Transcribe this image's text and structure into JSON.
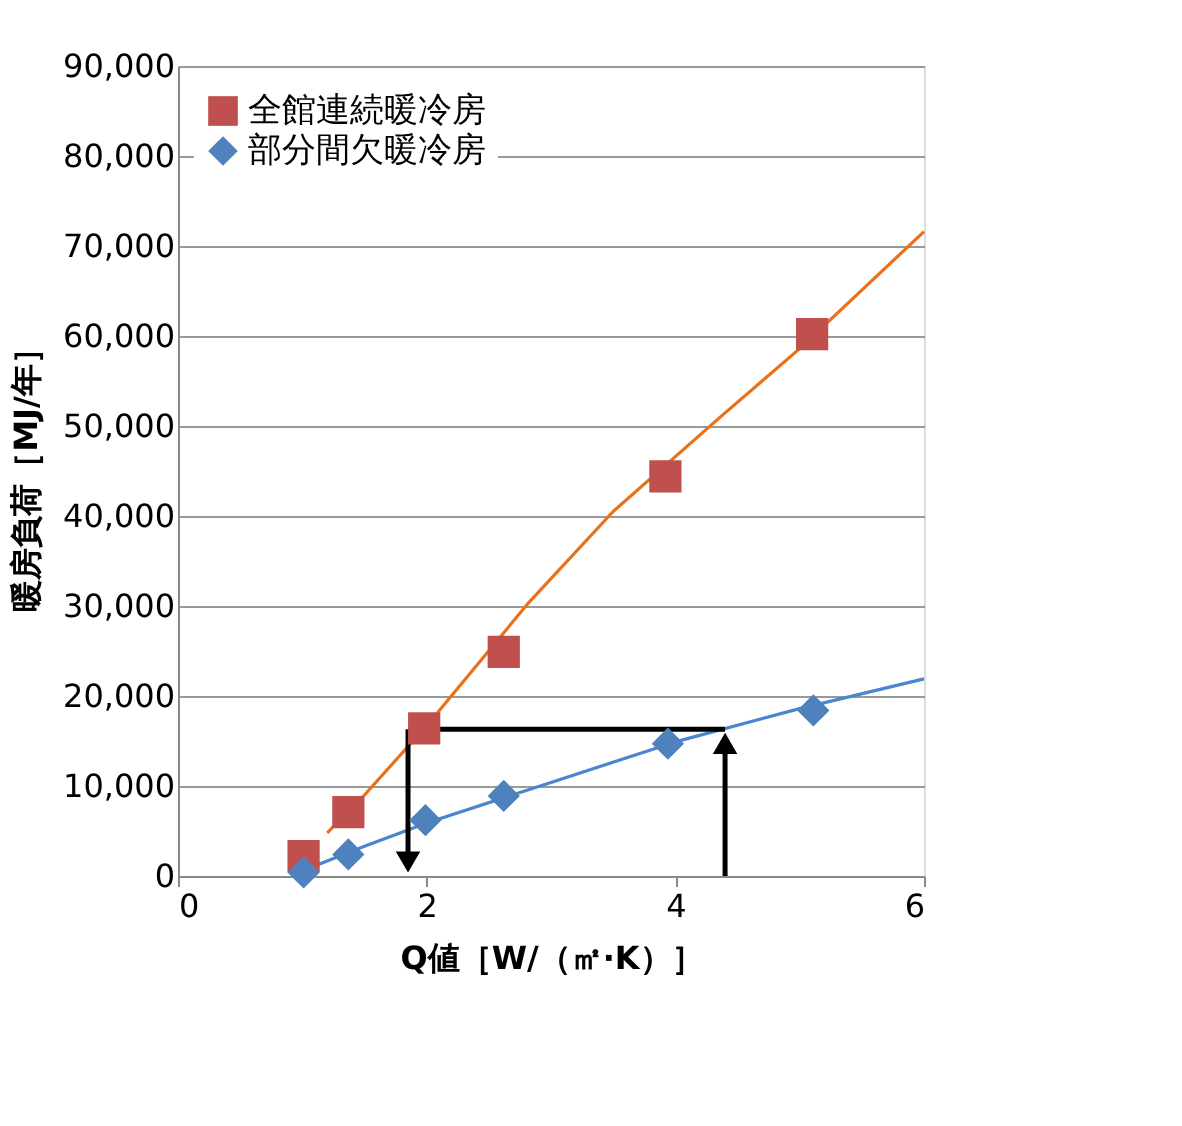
{
  "chart_data": {
    "type": "scatter",
    "xlabel": "Q値［W/（㎡·K）］",
    "ylabel": "暖房負荷［MJ/年］",
    "xlim": [
      0,
      6
    ],
    "xticks": [
      0,
      2,
      4,
      6
    ],
    "ylim": [
      0,
      90000
    ],
    "yticks": [
      0,
      {
        "value": 10000,
        "label": "10,000"
      },
      {
        "value": 20000,
        "label": "20,000"
      },
      {
        "value": 30000,
        "label": "30,000"
      },
      {
        "value": 40000,
        "label": "40,000"
      },
      {
        "value": 50000,
        "label": "50,000"
      },
      {
        "value": 60000,
        "label": "60,000"
      },
      {
        "value": 70000,
        "label": "70,000"
      },
      {
        "value": 80000,
        "label": "80,000"
      },
      {
        "value": 90000,
        "label": "90,000"
      }
    ],
    "grid": "y",
    "legend": "top left",
    "series": [
      {
        "name": "全館連続暖冷房",
        "color": "#c0504d",
        "marker": "square",
        "x": [
          1.01,
          1.37,
          1.98,
          2.62,
          3.92,
          5.1
        ],
        "values": [
          2200,
          7100,
          16400,
          24900,
          44400,
          60200
        ]
      },
      {
        "name": "部分間欠暖冷房",
        "color": "#4f81bd",
        "marker": "diamond",
        "x": [
          1.01,
          1.37,
          1.99,
          2.62,
          3.94,
          5.11
        ],
        "values": [
          400,
          2400,
          6200,
          8900,
          14700,
          18400
        ]
      },
      {
        "type": "line",
        "color": "#e8711a",
        "x": [
          1.2,
          1.5,
          2,
          2.81,
          3.5,
          4.37,
          5,
          6
        ],
        "values": [
          4800,
          9000,
          16700,
          30200,
          40500,
          51100,
          58600,
          71600
        ]
      },
      {
        "type": "line",
        "color": "#4a86d0",
        "x": [
          0.95,
          1.5,
          2,
          3,
          4,
          5,
          6
        ],
        "values": [
          300,
          3300,
          5900,
          10400,
          14900,
          18600,
          21900
        ]
      }
    ]
  }
}
